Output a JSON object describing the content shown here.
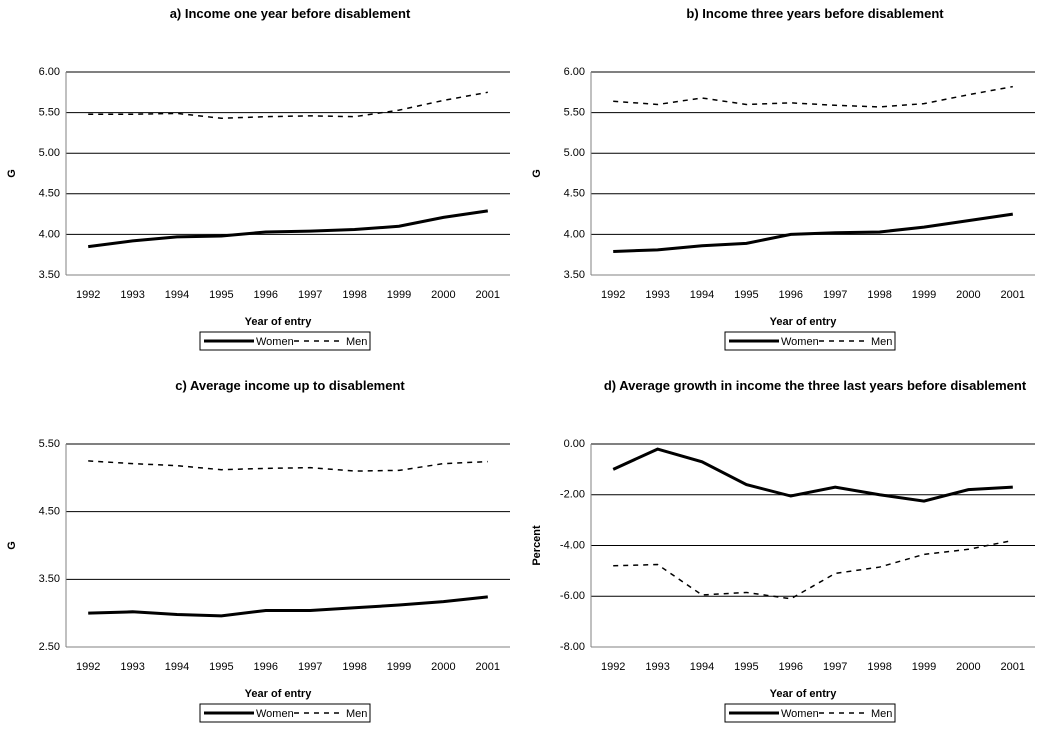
{
  "chart_data": [
    {
      "type": "line",
      "title": "a) Income one year before disablement",
      "xlabel": "Year of entry",
      "ylabel": "G",
      "categories": [
        "1992",
        "1993",
        "1994",
        "1995",
        "1996",
        "1997",
        "1998",
        "1999",
        "2000",
        "2001"
      ],
      "series": [
        {
          "name": "Women",
          "color": "#000000",
          "line_style": "solid",
          "values": [
            3.85,
            3.92,
            3.97,
            3.98,
            4.03,
            4.04,
            4.06,
            4.1,
            4.21,
            4.29
          ]
        },
        {
          "name": "Men",
          "color": "#000000",
          "line_style": "dashed",
          "values": [
            5.48,
            5.48,
            5.49,
            5.43,
            5.45,
            5.46,
            5.45,
            5.53,
            5.65,
            5.75
          ]
        }
      ],
      "ylim": [
        3.5,
        6.0
      ],
      "yticks": [
        {
          "value": 3.5,
          "label": "3.50"
        },
        {
          "value": 4,
          "label": "4.00"
        },
        {
          "value": 4.5,
          "label": "4.50"
        },
        {
          "value": 5,
          "label": "5.00"
        },
        {
          "value": 5.5,
          "label": "5.50"
        },
        {
          "value": 6,
          "label": "6.00"
        }
      ],
      "grid": true,
      "legend": "bottom"
    },
    {
      "type": "line",
      "title": "b) Income three years before disablement",
      "xlabel": "Year of entry",
      "ylabel": "G",
      "categories": [
        "1992",
        "1993",
        "1994",
        "1995",
        "1996",
        "1997",
        "1998",
        "1999",
        "2000",
        "2001"
      ],
      "series": [
        {
          "name": "Women",
          "color": "#000000",
          "line_style": "solid",
          "values": [
            3.79,
            3.81,
            3.86,
            3.89,
            4.0,
            4.02,
            4.03,
            4.09,
            4.17,
            4.25
          ]
        },
        {
          "name": "Men",
          "color": "#000000",
          "line_style": "dashed",
          "values": [
            5.64,
            5.6,
            5.68,
            5.6,
            5.62,
            5.59,
            5.57,
            5.61,
            5.72,
            5.82
          ]
        }
      ],
      "ylim": [
        3.5,
        6.0
      ],
      "yticks": [
        {
          "value": 3.5,
          "label": "3.50"
        },
        {
          "value": 4,
          "label": "4.00"
        },
        {
          "value": 4.5,
          "label": "4.50"
        },
        {
          "value": 5,
          "label": "5.00"
        },
        {
          "value": 5.5,
          "label": "5.50"
        },
        {
          "value": 6,
          "label": "6.00"
        }
      ],
      "grid": true,
      "legend": "bottom"
    },
    {
      "type": "line",
      "title": "c) Average income up to disablement",
      "xlabel": "Year of entry",
      "ylabel": "G",
      "categories": [
        "1992",
        "1993",
        "1994",
        "1995",
        "1996",
        "1997",
        "1998",
        "1999",
        "2000",
        "2001"
      ],
      "series": [
        {
          "name": "Women",
          "color": "#000000",
          "line_style": "solid",
          "values": [
            3.0,
            3.02,
            2.98,
            2.96,
            3.04,
            3.04,
            3.08,
            3.12,
            3.17,
            3.24
          ]
        },
        {
          "name": "Men",
          "color": "#000000",
          "line_style": "dashed",
          "values": [
            5.25,
            5.21,
            5.18,
            5.12,
            5.14,
            5.15,
            5.1,
            5.11,
            5.21,
            5.24
          ]
        }
      ],
      "ylim": [
        2.5,
        5.5
      ],
      "yticks": [
        {
          "value": 2.5,
          "label": "2.50"
        },
        {
          "value": 3.5,
          "label": "3.50"
        },
        {
          "value": 4.5,
          "label": "4.50"
        },
        {
          "value": 5.5,
          "label": "5.50"
        }
      ],
      "grid": true,
      "legend": "bottom"
    },
    {
      "type": "line",
      "title": "d) Average growth in income the three last years before disablement",
      "xlabel": "Year of entry",
      "ylabel": "Percent",
      "categories": [
        "1992",
        "1993",
        "1994",
        "1995",
        "1996",
        "1997",
        "1998",
        "1999",
        "2000",
        "2001"
      ],
      "series": [
        {
          "name": "Women",
          "color": "#000000",
          "line_style": "solid",
          "values": [
            -1.0,
            -0.2,
            -0.7,
            -1.6,
            -2.05,
            -1.7,
            -2.0,
            -2.25,
            -1.8,
            -1.7
          ]
        },
        {
          "name": "Men",
          "color": "#000000",
          "line_style": "dashed",
          "values": [
            -4.8,
            -4.75,
            -5.95,
            -5.85,
            -6.1,
            -5.1,
            -4.85,
            -4.35,
            -4.15,
            -3.8
          ]
        }
      ],
      "ylim": [
        -8,
        0
      ],
      "yticks": [
        {
          "value": -8,
          "label": "-8.00"
        },
        {
          "value": -6,
          "label": "-6.00"
        },
        {
          "value": -4,
          "label": "-4.00"
        },
        {
          "value": -2,
          "label": "-2.00"
        },
        {
          "value": 0,
          "label": "0.00"
        }
      ],
      "grid": true,
      "legend": "bottom"
    }
  ]
}
